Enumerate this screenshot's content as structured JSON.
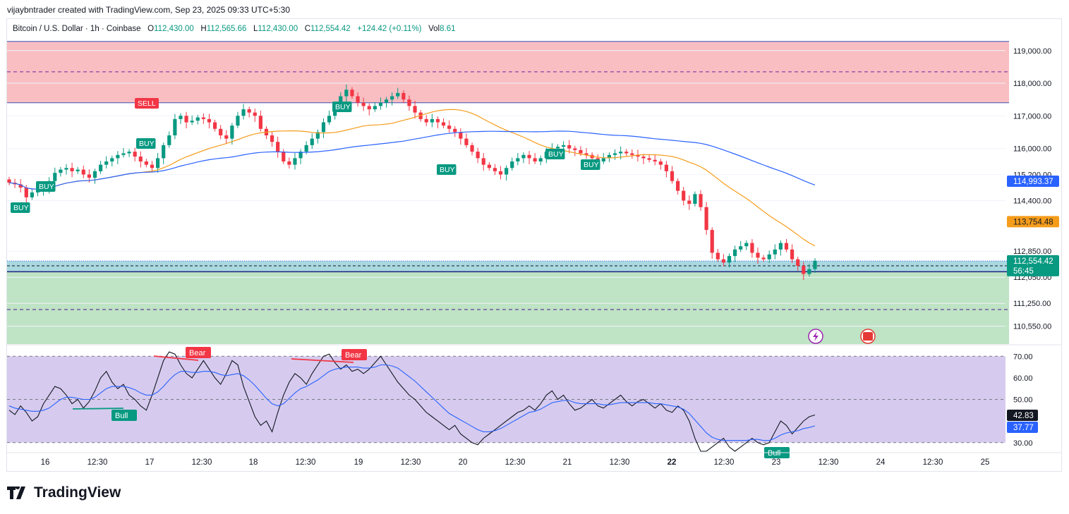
{
  "attribution": "vijaybntrader created with TradingView.com, Sep 23, 2025 09:33 UTC+5:30",
  "symbol": {
    "name": "Bitcoin / U.S. Dollar · 1h · Coinbase",
    "open_label": "O",
    "open": "112,430.00",
    "high_label": "H",
    "high": "112,565.66",
    "low_label": "L",
    "low": "112,430.00",
    "close_label": "C",
    "close": "112,554.42",
    "change": "+124.42 (+0.11%)",
    "vol_label": "Vol",
    "vol": "8.61"
  },
  "brand": "TradingView",
  "colors": {
    "up": "#089981",
    "down": "#f23645",
    "ma_fast": "#f59c1a",
    "ma_slow": "#2962ff",
    "resistance_zone": "#f8bbbf",
    "support_zone": "#bfe3c5",
    "current_zone": "#aad8e0",
    "rsi_band": "#d6cbee"
  },
  "chart_data": [
    {
      "type": "candlestick",
      "title": "Bitcoin / U.S. Dollar · 1h · Coinbase",
      "y_ticks": [
        "119,000.00",
        "118,000.00",
        "117,000.00",
        "116,000.00",
        "115,200.00",
        "114,400.00",
        "112,850.00",
        "112,050.00",
        "111,250.00",
        "110,550.00"
      ],
      "x_ticks": [
        "16",
        "12:30",
        "17",
        "12:30",
        "18",
        "12:30",
        "19",
        "12:30",
        "20",
        "12:30",
        "21",
        "12:30",
        "22",
        "12:30",
        "23",
        "12:30",
        "24",
        "12:30",
        "25"
      ],
      "ylim": [
        110000,
        119600
      ],
      "price_tags": [
        {
          "label": "114,993.37",
          "value": 114993.37,
          "color": "#2962ff"
        },
        {
          "label": "113,754.48",
          "value": 113754.48,
          "color": "#f59c1a"
        },
        {
          "label": "112,554.42",
          "value": 112554.42,
          "color": "#089981",
          "countdown": "56:45"
        }
      ],
      "zones": [
        {
          "name": "resistance",
          "from": 117400,
          "to": 119280,
          "midline": 118350
        },
        {
          "name": "support",
          "from": 110050,
          "to": 112220,
          "midline": 111060
        },
        {
          "name": "current",
          "from": 112220,
          "to": 112550
        }
      ],
      "close_series": [
        114950,
        114900,
        114800,
        114500,
        114650,
        114700,
        114800,
        115000,
        115250,
        115350,
        115400,
        115300,
        115350,
        115200,
        115100,
        115300,
        115500,
        115600,
        115700,
        115800,
        115850,
        115900,
        115750,
        115600,
        115500,
        115400,
        115700,
        116100,
        116400,
        116900,
        117000,
        116800,
        116850,
        116950,
        116900,
        116800,
        116600,
        116400,
        116300,
        116700,
        117000,
        117200,
        117100,
        117000,
        116600,
        116400,
        116200,
        115900,
        115600,
        115500,
        115700,
        115900,
        116100,
        116300,
        116500,
        116800,
        117000,
        117300,
        117600,
        117800,
        117600,
        117400,
        117300,
        117200,
        117300,
        117400,
        117500,
        117600,
        117700,
        117500,
        117300,
        117100,
        116900,
        116800,
        116900,
        116800,
        116700,
        116600,
        116500,
        116300,
        116100,
        115900,
        115700,
        115500,
        115400,
        115300,
        115200,
        115400,
        115600,
        115700,
        115800,
        115700,
        115600,
        115700,
        115900,
        116000,
        116050,
        116100,
        116000,
        115950,
        115850,
        115800,
        115700,
        115600,
        115700,
        115800,
        115850,
        115900,
        115850,
        115800,
        115750,
        115700,
        115650,
        115600,
        115500,
        115300,
        115000,
        114700,
        114400,
        114300,
        114600,
        114200,
        113500,
        112800,
        112600,
        112500,
        112700,
        112900,
        113000,
        113100,
        112800,
        112650,
        112600,
        112750,
        112900,
        113100,
        112900,
        112600,
        112400,
        112150,
        112300,
        112554
      ]
    },
    {
      "type": "line",
      "title": "RSI",
      "y_ticks": [
        "70.00",
        "60.00",
        "50.00",
        "30.00"
      ],
      "ylim": [
        26,
        74
      ],
      "band": [
        30,
        70
      ],
      "midline": 50,
      "value_tags": [
        {
          "label": "42.83",
          "value": 42.83,
          "color": "#131722"
        },
        {
          "label": "37.77",
          "value": 37.77,
          "color": "#2962ff"
        }
      ],
      "divergence_labels": [
        {
          "text": "Bear",
          "color": "#f23645"
        },
        {
          "text": "Bear",
          "color": "#f23645"
        },
        {
          "text": "Bull",
          "color": "#089981"
        },
        {
          "text": "Bull",
          "color": "#089981"
        }
      ],
      "series": [
        {
          "values": [
            45,
            43,
            47,
            44,
            40,
            42,
            48,
            52,
            56,
            55,
            52,
            48,
            50,
            46,
            49,
            54,
            60,
            63,
            58,
            55,
            57,
            52,
            50,
            47,
            45,
            52,
            60,
            68,
            72,
            71,
            66,
            62,
            60,
            64,
            68,
            64,
            60,
            57,
            62,
            68,
            66,
            56,
            49,
            42,
            38,
            40,
            35,
            44,
            52,
            58,
            62,
            60,
            57,
            62,
            66,
            70,
            71,
            67,
            64,
            66,
            63,
            64,
            62,
            64,
            67,
            70,
            66,
            62,
            58,
            55,
            52,
            50,
            47,
            44,
            42,
            40,
            38,
            36,
            38,
            34,
            32,
            30,
            29,
            32,
            34,
            36,
            38,
            40,
            42,
            44,
            45,
            47,
            45,
            48,
            52,
            54,
            50,
            52,
            48,
            45,
            46,
            48,
            50,
            47,
            46,
            48,
            50,
            52,
            49,
            47,
            49,
            50,
            48,
            46,
            48,
            45,
            44,
            47,
            45,
            40,
            32,
            26,
            24,
            28,
            30,
            32,
            28,
            26,
            28,
            30,
            32,
            30,
            29,
            30,
            35,
            40,
            38,
            34,
            37,
            40,
            42,
            42.83
          ]
        },
        {
          "values": [
            47,
            46,
            45.5,
            45,
            44.5,
            44.5,
            45,
            46,
            48,
            50,
            51,
            51,
            50.5,
            50,
            50,
            51,
            53,
            55,
            56,
            56,
            56,
            55.5,
            54.5,
            53,
            52,
            52,
            53.5,
            56,
            59,
            61.5,
            63,
            63,
            62.5,
            62.5,
            63,
            63,
            62.5,
            61.5,
            61,
            61.5,
            62,
            61,
            59,
            56.5,
            53.5,
            50.5,
            48,
            47,
            48,
            50.5,
            53,
            55,
            56,
            57.5,
            59,
            61,
            63,
            64,
            64.5,
            65,
            65,
            65,
            64.5,
            64.5,
            65,
            66,
            66,
            65.5,
            64.5,
            62.5,
            60.5,
            58.5,
            56,
            53.5,
            51,
            48.5,
            46,
            43.5,
            42,
            40.5,
            39,
            37.5,
            36,
            35,
            35,
            35.5,
            36.5,
            38,
            39.5,
            41,
            42.5,
            44,
            44.5,
            45.5,
            47,
            48.5,
            49,
            49.5,
            49.5,
            48.5,
            48,
            48,
            48,
            48,
            47.5,
            47.5,
            48,
            48.5,
            48.5,
            48.5,
            48.5,
            48.5,
            48.5,
            48,
            48,
            47.5,
            47,
            46.5,
            45.5,
            43.5,
            40.5,
            37.5,
            34.5,
            32.5,
            31.5,
            31,
            31,
            31,
            31,
            31,
            31.5,
            31.5,
            31,
            31,
            32,
            33.5,
            34.5,
            35,
            35.5,
            36.5,
            37,
            37.77
          ]
        }
      ]
    }
  ]
}
